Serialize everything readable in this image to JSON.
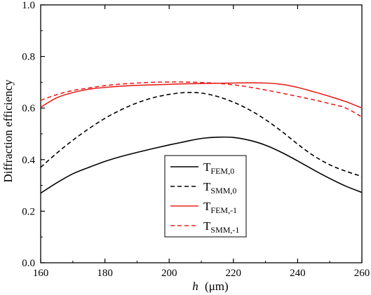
{
  "chart_data": {
    "type": "line",
    "xlabel_var": "h",
    "xlabel_unit": "(μm)",
    "ylabel": "Diffraction efficiency",
    "xlim": [
      160,
      260
    ],
    "ylim": [
      0.0,
      1.0
    ],
    "xticks": [
      "160",
      "180",
      "200",
      "220",
      "240",
      "260"
    ],
    "yticks": [
      "0.0",
      "0.2",
      "0.4",
      "0.6",
      "0.8",
      "1.0"
    ],
    "grid": false,
    "legend_position": "bottom-center",
    "series": [
      {
        "name": "T",
        "subscript": "FEM,0",
        "color": "#000000",
        "dash": "solid",
        "x": [
          160,
          165,
          170,
          175,
          180,
          185,
          190,
          195,
          200,
          205,
          210,
          215,
          220,
          225,
          230,
          235,
          240,
          245,
          250,
          255,
          260
        ],
        "y": [
          0.27,
          0.31,
          0.345,
          0.37,
          0.393,
          0.412,
          0.428,
          0.443,
          0.457,
          0.47,
          0.482,
          0.487,
          0.486,
          0.475,
          0.456,
          0.428,
          0.395,
          0.36,
          0.327,
          0.297,
          0.273
        ]
      },
      {
        "name": "T",
        "subscript": "SMM,0",
        "color": "#000000",
        "dash": "dashed",
        "x": [
          160,
          165,
          170,
          175,
          180,
          185,
          190,
          195,
          200,
          205,
          210,
          215,
          220,
          225,
          230,
          235,
          240,
          245,
          250,
          255,
          260
        ],
        "y": [
          0.37,
          0.425,
          0.475,
          0.52,
          0.56,
          0.593,
          0.62,
          0.64,
          0.653,
          0.66,
          0.658,
          0.645,
          0.623,
          0.593,
          0.555,
          0.51,
          0.46,
          0.415,
          0.38,
          0.355,
          0.335
        ]
      },
      {
        "name": "T",
        "subscript": "FEM,-1",
        "color": "#e8231f",
        "dash": "solid",
        "x": [
          160,
          165,
          170,
          175,
          180,
          185,
          190,
          195,
          200,
          205,
          210,
          215,
          220,
          225,
          230,
          235,
          240,
          245,
          250,
          255,
          260
        ],
        "y": [
          0.603,
          0.64,
          0.66,
          0.673,
          0.68,
          0.685,
          0.688,
          0.69,
          0.692,
          0.694,
          0.695,
          0.696,
          0.697,
          0.698,
          0.697,
          0.692,
          0.68,
          0.663,
          0.645,
          0.625,
          0.6
        ]
      },
      {
        "name": "T",
        "subscript": "SMM,-1",
        "color": "#e8231f",
        "dash": "dashed",
        "x": [
          160,
          165,
          170,
          175,
          180,
          185,
          190,
          195,
          200,
          205,
          210,
          215,
          220,
          225,
          230,
          235,
          240,
          245,
          250,
          255,
          260
        ],
        "y": [
          0.63,
          0.652,
          0.668,
          0.678,
          0.687,
          0.693,
          0.697,
          0.7,
          0.701,
          0.701,
          0.699,
          0.696,
          0.69,
          0.681,
          0.67,
          0.658,
          0.645,
          0.632,
          0.617,
          0.6,
          0.565
        ]
      }
    ]
  }
}
